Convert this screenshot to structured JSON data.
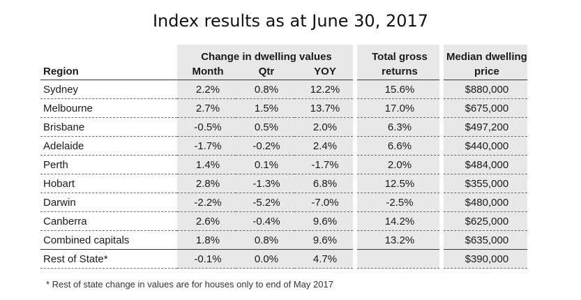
{
  "title": "Index results as at June 30, 2017",
  "table": {
    "headers": {
      "region": "Region",
      "group": "Change in dwelling values",
      "month": "Month",
      "qtr": "Qtr",
      "yoy": "YOY",
      "total_gross_1": "Total gross",
      "total_gross_2": "returns",
      "median_1": "Median dwelling",
      "median_2": "price"
    },
    "rows": [
      {
        "region": "Sydney",
        "month": "2.2%",
        "qtr": "0.8%",
        "yoy": "12.2%",
        "tgr": "15.6%",
        "median": "$880,000"
      },
      {
        "region": "Melbourne",
        "month": "2.7%",
        "qtr": "1.5%",
        "yoy": "13.7%",
        "tgr": "17.0%",
        "median": "$675,000"
      },
      {
        "region": "Brisbane",
        "month": "-0.5%",
        "qtr": "0.5%",
        "yoy": "2.0%",
        "tgr": "6.3%",
        "median": "$497,200"
      },
      {
        "region": "Adelaide",
        "month": "-1.7%",
        "qtr": "-0.2%",
        "yoy": "2.4%",
        "tgr": "6.6%",
        "median": "$440,000"
      },
      {
        "region": "Perth",
        "month": "1.4%",
        "qtr": "0.1%",
        "yoy": "-1.7%",
        "tgr": "2.0%",
        "median": "$484,000"
      },
      {
        "region": "Hobart",
        "month": "2.8%",
        "qtr": "-1.3%",
        "yoy": "6.8%",
        "tgr": "12.5%",
        "median": "$355,000"
      },
      {
        "region": "Darwin",
        "month": "-2.2%",
        "qtr": "-5.2%",
        "yoy": "-7.0%",
        "tgr": "-2.5%",
        "median": "$480,000"
      },
      {
        "region": "Canberra",
        "month": "2.6%",
        "qtr": "-0.4%",
        "yoy": "9.6%",
        "tgr": "14.2%",
        "median": "$625,000"
      },
      {
        "region": "Combined capitals",
        "month": "1.8%",
        "qtr": "0.8%",
        "yoy": "9.6%",
        "tgr": "13.2%",
        "median": "$635,000"
      },
      {
        "region": "Rest of State*",
        "month": "-0.1%",
        "qtr": "0.0%",
        "yoy": "4.7%",
        "tgr": "",
        "median": "$390,000"
      }
    ]
  },
  "footnote": "* Rest of state change in values are for houses only to end of May  2017"
}
